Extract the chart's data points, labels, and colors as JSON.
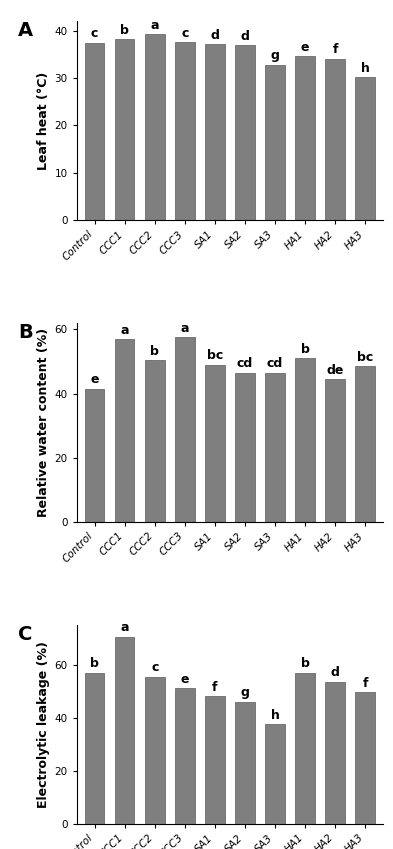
{
  "categories": [
    "Control",
    "CCC1",
    "CCC2",
    "CCC3",
    "SA1",
    "SA2",
    "SA3",
    "HA1",
    "HA2",
    "HA3"
  ],
  "panel_A": {
    "label": "A",
    "values": [
      37.5,
      38.2,
      39.2,
      37.6,
      37.1,
      36.9,
      32.8,
      34.6,
      34.1,
      30.2
    ],
    "letters": [
      "c",
      "b",
      "a",
      "c",
      "d",
      "d",
      "g",
      "e",
      "f",
      "h"
    ],
    "ylabel": "Leaf heat (°C)",
    "ylim": [
      0,
      42
    ],
    "yticks": [
      0,
      10,
      20,
      30,
      40
    ]
  },
  "panel_B": {
    "label": "B",
    "values": [
      41.5,
      57.0,
      50.5,
      57.5,
      49.0,
      46.5,
      46.5,
      51.0,
      44.5,
      48.5
    ],
    "letters": [
      "e",
      "a",
      "b",
      "a",
      "bc",
      "cd",
      "cd",
      "b",
      "de",
      "bc"
    ],
    "ylabel": "Relative water content (%)",
    "ylim": [
      0,
      62
    ],
    "yticks": [
      0,
      20,
      40,
      60
    ]
  },
  "panel_C": {
    "label": "C",
    "values": [
      57.0,
      70.5,
      55.5,
      51.0,
      48.0,
      46.0,
      37.5,
      57.0,
      53.5,
      49.5
    ],
    "letters": [
      "b",
      "a",
      "c",
      "e",
      "f",
      "g",
      "h",
      "b",
      "d",
      "f"
    ],
    "ylabel": "Electrolytic leakage (%)",
    "ylim": [
      0,
      75
    ],
    "yticks": [
      0,
      20,
      40,
      60
    ]
  },
  "bar_color": "#7f7f7f",
  "bar_edge_color": "#5a5a5a",
  "letter_fontsize": 9,
  "label_fontsize": 9,
  "tick_fontsize": 7.5,
  "panel_label_fontsize": 14,
  "ylabel_fontsize": 9
}
